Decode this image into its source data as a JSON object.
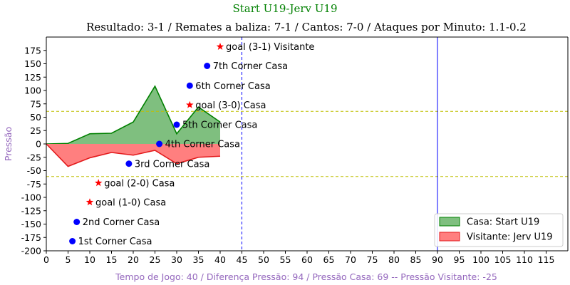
{
  "chart_data": {
    "type": "area",
    "title": "Start U19-Jerv U19",
    "subtitle": "Resultado: 3-1 / Remates a baliza: 7-1 / Cantos: 7-0 / Ataques por Minuto: 1.1-0.2",
    "xlabel": "Tempo de Jogo: 40 / Diferença Pressão: 94 / Pressão Casa: 69 -- Pressão Visitante: -25",
    "ylabel": "Pressão",
    "xlim": [
      0,
      120
    ],
    "ylim": [
      -200,
      200
    ],
    "xticks": [
      0,
      5,
      10,
      15,
      20,
      25,
      30,
      35,
      40,
      45,
      50,
      55,
      60,
      65,
      70,
      75,
      80,
      85,
      90,
      95,
      100,
      105,
      110,
      115
    ],
    "yticks": [
      -200,
      -175,
      -150,
      -125,
      -100,
      -75,
      -50,
      -25,
      0,
      25,
      50,
      75,
      100,
      125,
      150,
      175
    ],
    "series": [
      {
        "name": "Casa: Start U19",
        "color": "#008000",
        "fill": "#7fbf7f",
        "x": [
          0,
          5,
          10,
          15,
          20,
          25,
          30,
          35,
          40
        ],
        "y": [
          0,
          1,
          19,
          20,
          41,
          108,
          19,
          69,
          41
        ]
      },
      {
        "name": "Visitante: Jerv U19",
        "color": "#e31a1c",
        "fill": "#ff7f7f",
        "x": [
          0,
          5,
          10,
          15,
          20,
          25,
          30,
          35,
          40
        ],
        "y": [
          0,
          -42,
          -26,
          -16,
          -21,
          -12,
          -37,
          -25,
          -23
        ]
      }
    ],
    "reference_lines": {
      "horizontal": [
        61,
        -61
      ],
      "horizontal_color": "#bfbf00",
      "vertical_dashed": 45,
      "vertical_solid": 90,
      "vertical_color": "#0000ff"
    },
    "events": [
      {
        "x": 6,
        "y": -182,
        "marker": "dot",
        "label": "1st Corner Casa"
      },
      {
        "x": 7,
        "y": -146,
        "marker": "dot",
        "label": "2nd Corner Casa"
      },
      {
        "x": 19,
        "y": -37,
        "marker": "dot",
        "label": "3rd Corner Casa"
      },
      {
        "x": 26,
        "y": 0,
        "marker": "dot",
        "label": "4th Corner Casa"
      },
      {
        "x": 30,
        "y": 36,
        "marker": "dot",
        "label": "5th Corner Casa"
      },
      {
        "x": 33,
        "y": 109,
        "marker": "dot",
        "label": "6th Corner Casa"
      },
      {
        "x": 37,
        "y": 146,
        "marker": "dot",
        "label": "7th Corner Casa"
      },
      {
        "x": 10,
        "y": -109,
        "marker": "star",
        "label": "goal (1-0) Casa"
      },
      {
        "x": 12,
        "y": -73,
        "marker": "star",
        "label": "goal (2-0) Casa"
      },
      {
        "x": 33,
        "y": 73,
        "marker": "star",
        "label": "goal (3-0) Casa"
      },
      {
        "x": 40,
        "y": 182,
        "marker": "star",
        "label": "goal (3-1) Visitante"
      }
    ],
    "event_colors": {
      "dot": "#0000ff",
      "star": "#ff0000"
    },
    "label_colors": {
      "title": "#008000",
      "subtitle": "#000000",
      "axis": "#9467bd"
    },
    "legend": "bottom-right",
    "grid": false
  }
}
